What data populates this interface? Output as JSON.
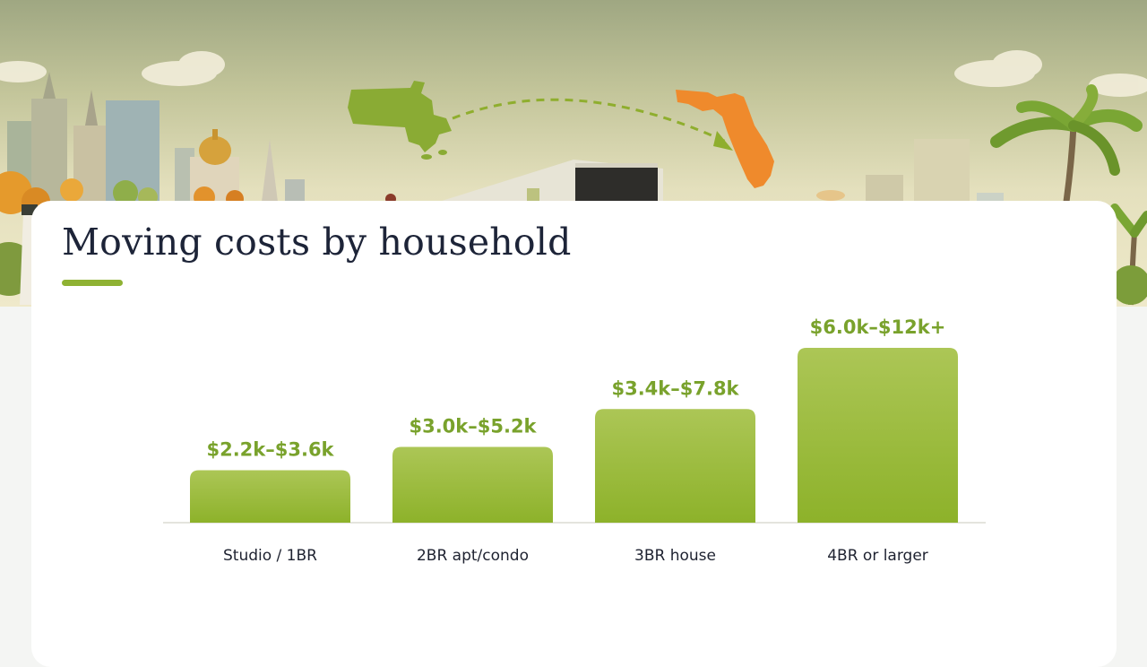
{
  "header": {
    "title": "Moving costs by household"
  },
  "colors": {
    "bar_top": "#acc656",
    "bar_bottom": "#8db22a",
    "value_label": "#79a22c",
    "accent": "#8fb233",
    "origin_state": "#8aab34",
    "destination_state": "#ef8a2c",
    "title_text": "#1d2438"
  },
  "chart_data": {
    "type": "bar",
    "categories": [
      "Studio / 1BR",
      "2BR apt/condo",
      "3BR house",
      "4BR or larger"
    ],
    "values": [
      3.6,
      5.2,
      7.8,
      12
    ],
    "value_labels": [
      "$2.2k–$3.6k",
      "$3.0k–$5.2k",
      "$3.4k–$7.8k",
      "$6.0k–$12k+"
    ],
    "title": "Moving costs by household",
    "xlabel": "",
    "ylabel": "",
    "ylim": [
      0,
      12
    ],
    "grid": false,
    "legend": "none"
  },
  "illustration": {
    "icons": [
      "massachusetts-map-icon",
      "florida-map-icon",
      "dashed-route-arrow-icon",
      "moving-truck-icon",
      "city-skyline-icon",
      "palm-tree-icon"
    ]
  }
}
